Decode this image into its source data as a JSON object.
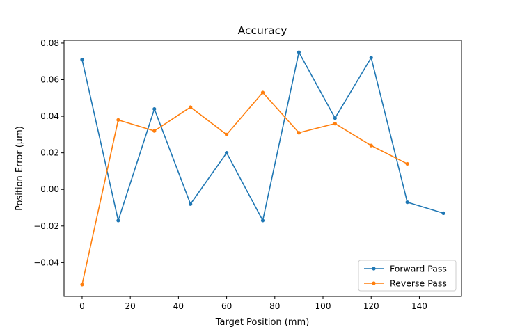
{
  "chart_data": {
    "type": "line",
    "title": "Accuracy",
    "xlabel": "Target Position (mm)",
    "ylabel": "Position Error (µm)",
    "xlim": [
      -7.5,
      157.5
    ],
    "ylim": [
      -0.0585,
      0.0815
    ],
    "xticks": [
      0,
      20,
      40,
      60,
      80,
      100,
      120,
      140
    ],
    "xtick_labels": [
      "0",
      "20",
      "40",
      "60",
      "80",
      "100",
      "120",
      "140"
    ],
    "yticks": [
      -0.04,
      -0.02,
      0.0,
      0.02,
      0.04,
      0.06,
      0.08
    ],
    "ytick_labels": [
      "−0.04",
      "−0.02",
      "0.00",
      "0.02",
      "0.04",
      "0.06",
      "0.08"
    ],
    "grid": false,
    "legend_position": "lower-right",
    "series": [
      {
        "name": "Forward Pass",
        "color": "#1f77b4",
        "x": [
          0,
          15,
          30,
          45,
          60,
          75,
          90,
          105,
          120,
          135,
          150
        ],
        "y": [
          0.071,
          -0.017,
          0.044,
          -0.008,
          0.02,
          -0.017,
          0.075,
          0.039,
          0.072,
          -0.007,
          -0.013
        ]
      },
      {
        "name": "Reverse Pass",
        "color": "#ff7f0e",
        "x": [
          0,
          15,
          30,
          45,
          60,
          75,
          90,
          105,
          120,
          135
        ],
        "y": [
          -0.052,
          0.038,
          0.032,
          0.045,
          0.03,
          0.053,
          0.031,
          0.036,
          0.024,
          0.014
        ]
      }
    ]
  }
}
